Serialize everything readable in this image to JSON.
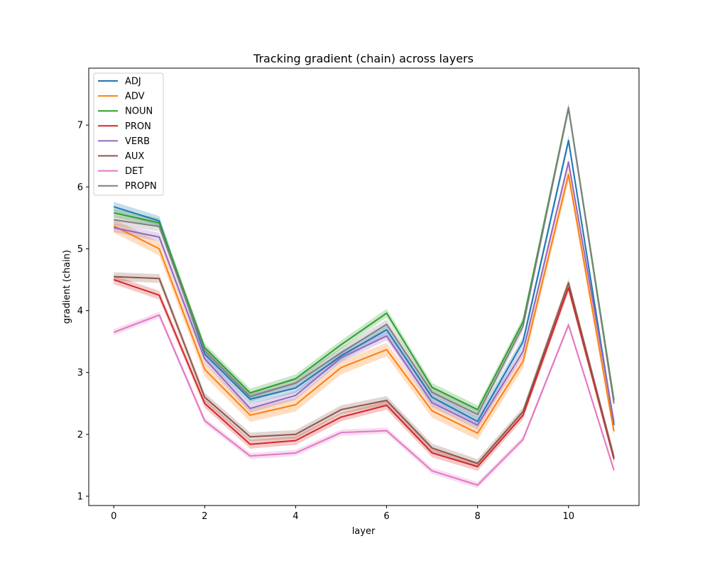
{
  "chart_data": {
    "type": "line",
    "title": "Tracking gradient (chain) across layers",
    "xlabel": "layer",
    "ylabel": "gradient (chain)",
    "xlim": [
      -0.55,
      11.55
    ],
    "ylim": [
      0.85,
      7.92
    ],
    "xticks": [
      0,
      2,
      4,
      6,
      8,
      10
    ],
    "yticks": [
      1,
      2,
      3,
      4,
      5,
      6,
      7
    ],
    "x": [
      0,
      1,
      2,
      3,
      4,
      5,
      6,
      7,
      8,
      9,
      10,
      11
    ],
    "legend_position": "upper-left",
    "grid": false,
    "series": [
      {
        "name": "ADJ",
        "color": "#1f77b4",
        "band": 0.08,
        "values": [
          5.68,
          5.45,
          3.3,
          2.57,
          2.75,
          3.27,
          3.69,
          2.6,
          2.21,
          3.5,
          6.75,
          2.15
        ]
      },
      {
        "name": "ADV",
        "color": "#ff7f0e",
        "band": 0.11,
        "values": [
          5.37,
          5.0,
          3.05,
          2.31,
          2.48,
          3.08,
          3.37,
          2.38,
          2.02,
          3.18,
          6.2,
          2.05
        ]
      },
      {
        "name": "NOUN",
        "color": "#2ca02c",
        "band": 0.07,
        "values": [
          5.58,
          5.42,
          3.4,
          2.67,
          2.9,
          3.45,
          3.96,
          2.76,
          2.4,
          3.82,
          7.28,
          2.55
        ]
      },
      {
        "name": "PRON",
        "color": "#d62728",
        "band": 0.07,
        "values": [
          4.5,
          4.25,
          2.5,
          1.84,
          1.9,
          2.28,
          2.47,
          1.7,
          1.48,
          2.31,
          4.37,
          1.6
        ]
      },
      {
        "name": "VERB",
        "color": "#9467bd",
        "band": 0.07,
        "values": [
          5.34,
          5.19,
          3.22,
          2.42,
          2.63,
          3.24,
          3.59,
          2.51,
          2.15,
          3.34,
          6.4,
          2.2
        ]
      },
      {
        "name": "AUX",
        "color": "#8c564b",
        "band": 0.07,
        "values": [
          4.55,
          4.52,
          2.6,
          1.96,
          2.0,
          2.4,
          2.55,
          1.78,
          1.53,
          2.37,
          4.45,
          1.63
        ]
      },
      {
        "name": "DET",
        "color": "#e377c2",
        "band": 0.05,
        "values": [
          3.65,
          3.93,
          2.22,
          1.65,
          1.7,
          2.03,
          2.06,
          1.41,
          1.18,
          1.92,
          3.77,
          1.42
        ]
      },
      {
        "name": "PROPN",
        "color": "#7f7f7f",
        "band": 0.08,
        "values": [
          5.47,
          5.36,
          3.35,
          2.61,
          2.83,
          3.32,
          3.78,
          2.68,
          2.32,
          3.75,
          7.27,
          2.5
        ]
      }
    ]
  }
}
